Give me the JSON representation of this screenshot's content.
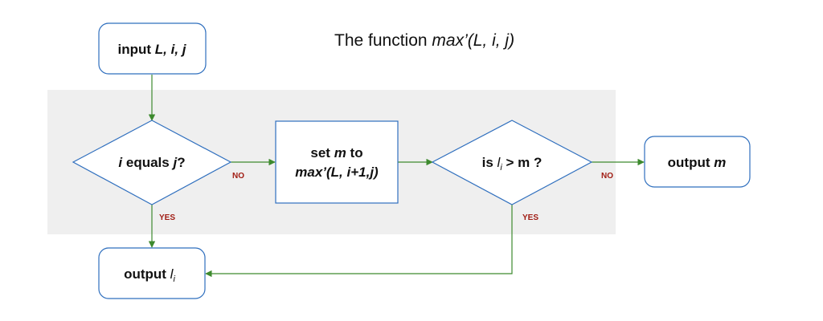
{
  "title": {
    "prefix": "The function ",
    "func": "max’(L, i, j)"
  },
  "nodes": {
    "input": {
      "prefix": "input ",
      "vars": "L, i, j"
    },
    "check_equal": {
      "var": "i",
      "middle": " equals ",
      "var2": "j",
      "suffix": "?"
    },
    "set_m": {
      "line1_prefix": "set ",
      "line1_var": "m",
      "line1_suffix": " to",
      "line2": "max’(L, i+1,j)"
    },
    "compare": {
      "prefix": "is ",
      "var": "l",
      "sub": "i",
      "suffix": " > m ?"
    },
    "output_m": {
      "prefix": "output ",
      "var": "m"
    },
    "output_li": {
      "prefix": "output ",
      "var": "l",
      "sub": "i"
    }
  },
  "edge_labels": {
    "equal_no": "NO",
    "equal_yes": "YES",
    "compare_no": "NO",
    "compare_yes": "YES"
  },
  "colors": {
    "box_border": "#2f6fbe",
    "arrow": "#3d8a2e",
    "edge_label": "#a11d14",
    "band": "#efefef"
  }
}
